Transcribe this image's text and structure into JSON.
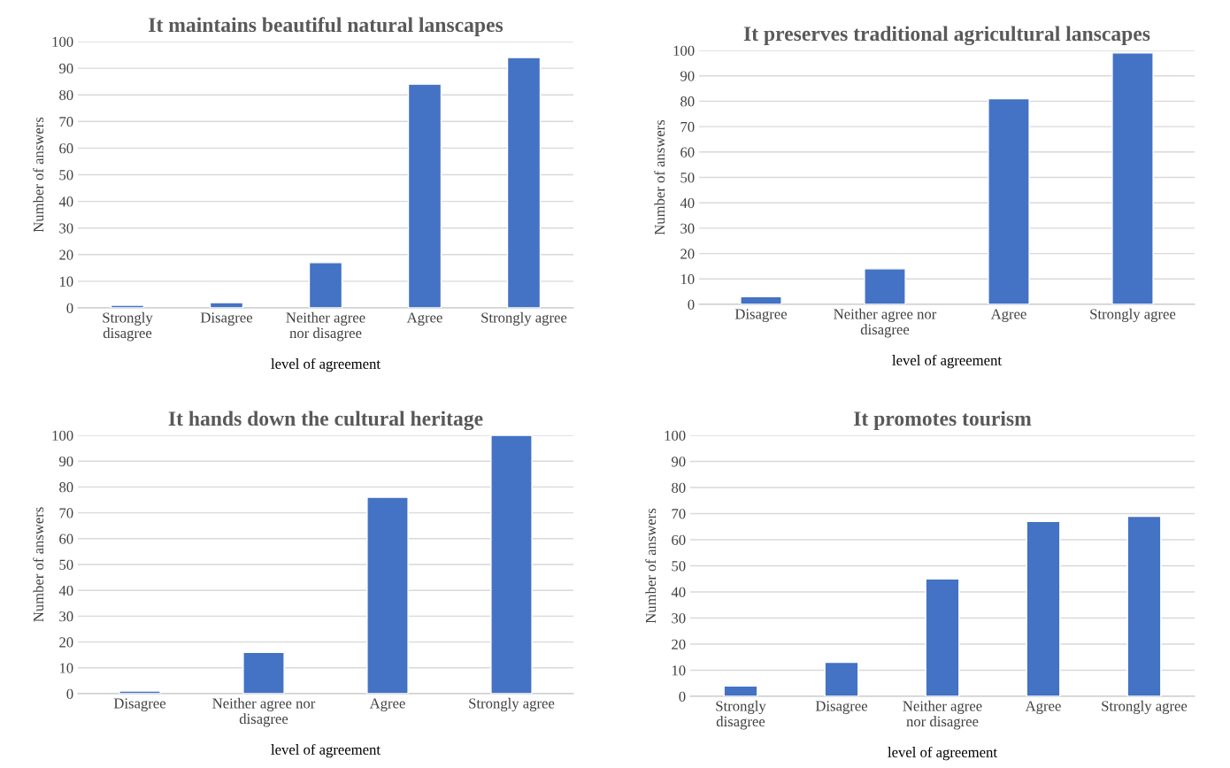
{
  "chart_data": [
    {
      "type": "bar",
      "title": "It maintains beautiful natural lanscapes",
      "xlabel": "level of agreement",
      "ylabel": "Number of answers",
      "categories": [
        "Strongly\ndisagree",
        "Disagree",
        "Neither agree\nnor disagree",
        "Agree",
        "Strongly agree"
      ],
      "values": [
        1,
        2,
        17,
        84,
        94
      ],
      "color": "#4472c4",
      "ylim": [
        0,
        100
      ],
      "yticks": [
        0,
        10,
        20,
        30,
        40,
        50,
        60,
        70,
        80,
        90,
        100
      ],
      "grid": "y"
    },
    {
      "type": "bar",
      "title": "It preserves traditional agricultural lanscapes",
      "xlabel": "level of agreement",
      "ylabel": "Number of answers",
      "categories": [
        "Disagree",
        "Neither agree nor\ndisagree",
        "Agree",
        "Strongly agree"
      ],
      "values": [
        3,
        14,
        81,
        99
      ],
      "color": "#4472c4",
      "ylim": [
        0,
        100
      ],
      "yticks": [
        0,
        10,
        20,
        30,
        40,
        50,
        60,
        70,
        80,
        90,
        100
      ],
      "grid": "y"
    },
    {
      "type": "bar",
      "title": "It hands down the cultural heritage",
      "xlabel": "level of agreement",
      "ylabel": "Number of answers",
      "categories": [
        "Disagree",
        "Neither agree nor\ndisagree",
        "Agree",
        "Strongly agree"
      ],
      "values": [
        1,
        16,
        76,
        100
      ],
      "color": "#4472c4",
      "ylim": [
        0,
        100
      ],
      "yticks": [
        0,
        10,
        20,
        30,
        40,
        50,
        60,
        70,
        80,
        90,
        100
      ],
      "grid": "y"
    },
    {
      "type": "bar",
      "title": "It promotes tourism",
      "xlabel": "level of agreement",
      "ylabel": "Number of answers",
      "categories": [
        "Strongly\ndisagree",
        "Disagree",
        "Neither agree\nnor disagree",
        "Agree",
        "Strongly agree"
      ],
      "values": [
        4,
        13,
        45,
        67,
        69
      ],
      "color": "#4472c4",
      "ylim": [
        0,
        100
      ],
      "yticks": [
        0,
        10,
        20,
        30,
        40,
        50,
        60,
        70,
        80,
        90,
        100
      ],
      "grid": "y"
    }
  ]
}
